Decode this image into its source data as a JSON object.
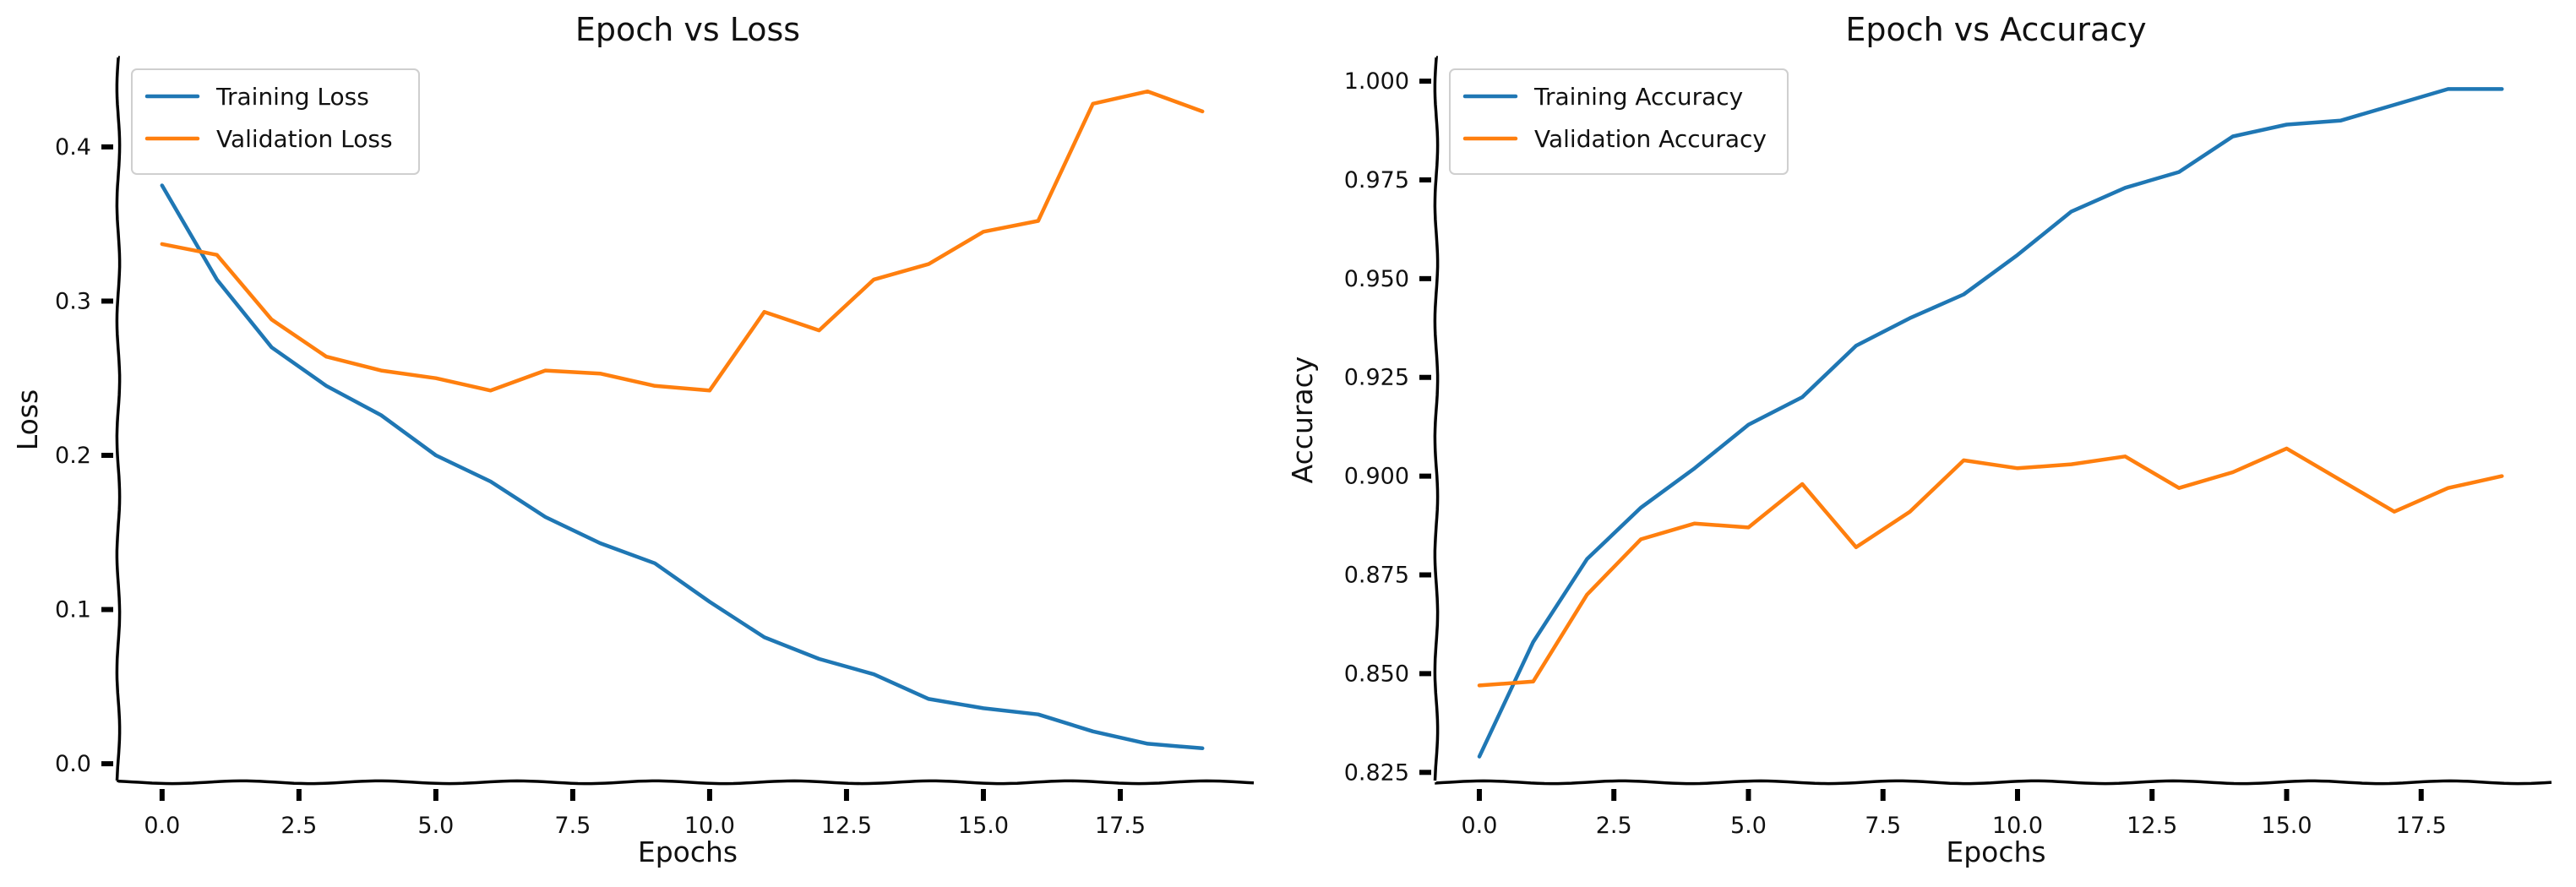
{
  "colors": {
    "series1": "#1f77b4",
    "series2": "#ff7f0e"
  },
  "chart_data": [
    {
      "type": "line",
      "title": "Epoch vs Loss",
      "xlabel": "Epochs",
      "ylabel": "Loss",
      "xlim": [
        -0.8,
        20
      ],
      "ylim": [
        -0.012,
        0.458
      ],
      "xticks": [
        0.0,
        2.5,
        5.0,
        7.5,
        10.0,
        12.5,
        15.0,
        17.5
      ],
      "xtick_labels": [
        "0.0",
        "2.5",
        "5.0",
        "7.5",
        "10.0",
        "12.5",
        "15.0",
        "17.5"
      ],
      "yticks": [
        0.0,
        0.1,
        0.2,
        0.3,
        0.4
      ],
      "ytick_labels": [
        "0.0",
        "0.1",
        "0.2",
        "0.3",
        "0.4"
      ],
      "legend": "upper-left",
      "grid": false,
      "x": [
        0,
        1,
        2,
        3,
        4,
        5,
        6,
        7,
        8,
        9,
        10,
        11,
        12,
        13,
        14,
        15,
        16,
        17,
        18,
        19
      ],
      "series": [
        {
          "name": "Training Loss",
          "color": "#1f77b4",
          "values": [
            0.375,
            0.314,
            0.27,
            0.245,
            0.226,
            0.2,
            0.183,
            0.16,
            0.143,
            0.13,
            0.105,
            0.082,
            0.068,
            0.058,
            0.042,
            0.036,
            0.032,
            0.021,
            0.013,
            0.01
          ]
        },
        {
          "name": "Validation Loss",
          "color": "#ff7f0e",
          "values": [
            0.337,
            0.33,
            0.288,
            0.264,
            0.255,
            0.25,
            0.242,
            0.255,
            0.253,
            0.245,
            0.242,
            0.293,
            0.281,
            0.314,
            0.324,
            0.345,
            0.352,
            0.428,
            0.436,
            0.423
          ]
        }
      ]
    },
    {
      "type": "line",
      "title": "Epoch vs Accuracy",
      "xlabel": "Epochs",
      "ylabel": "Accuracy",
      "xlim": [
        -0.8,
        20
      ],
      "ylim": [
        0.8225,
        1.006
      ],
      "xticks": [
        0.0,
        2.5,
        5.0,
        7.5,
        10.0,
        12.5,
        15.0,
        17.5
      ],
      "xtick_labels": [
        "0.0",
        "2.5",
        "5.0",
        "7.5",
        "10.0",
        "12.5",
        "15.0",
        "17.5"
      ],
      "yticks": [
        0.825,
        0.85,
        0.875,
        0.9,
        0.925,
        0.95,
        0.975,
        1.0
      ],
      "ytick_labels": [
        "0.825",
        "0.850",
        "0.875",
        "0.900",
        "0.925",
        "0.950",
        "0.975",
        "1.000"
      ],
      "legend": "upper-left",
      "grid": false,
      "x": [
        0,
        1,
        2,
        3,
        4,
        5,
        6,
        7,
        8,
        9,
        10,
        11,
        12,
        13,
        14,
        15,
        16,
        17,
        18,
        19
      ],
      "series": [
        {
          "name": "Training Accuracy",
          "color": "#1f77b4",
          "values": [
            0.829,
            0.858,
            0.879,
            0.892,
            0.902,
            0.913,
            0.92,
            0.933,
            0.94,
            0.946,
            0.956,
            0.967,
            0.973,
            0.977,
            0.986,
            0.989,
            0.99,
            0.994,
            0.998,
            0.998
          ]
        },
        {
          "name": "Validation Accuracy",
          "color": "#ff7f0e",
          "values": [
            0.847,
            0.848,
            0.87,
            0.884,
            0.888,
            0.887,
            0.898,
            0.882,
            0.891,
            0.904,
            0.902,
            0.903,
            0.905,
            0.897,
            0.901,
            0.907,
            0.899,
            0.891,
            0.897,
            0.9
          ]
        }
      ]
    }
  ]
}
